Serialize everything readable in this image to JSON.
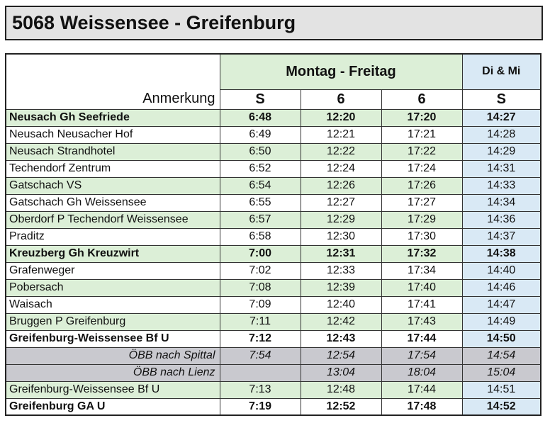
{
  "title": "5068 Weissensee - Greifenburg",
  "header": {
    "group_mf": "Montag - Freitag",
    "group_dm": "Di & Mi",
    "note_label": "Anmerkung",
    "codes": [
      "S",
      "6",
      "6",
      "S"
    ]
  },
  "rows": [
    {
      "stop": "Neusach Gh Seefriede",
      "times": [
        "6:48",
        "12:20",
        "17:20",
        "14:27"
      ],
      "style": "green",
      "bold": true
    },
    {
      "stop": "Neusach Neusacher Hof",
      "times": [
        "6:49",
        "12:21",
        "17:21",
        "14:28"
      ],
      "style": "white",
      "bold": false
    },
    {
      "stop": "Neusach Strandhotel",
      "times": [
        "6:50",
        "12:22",
        "17:22",
        "14:29"
      ],
      "style": "green",
      "bold": false
    },
    {
      "stop": "Techendorf Zentrum",
      "times": [
        "6:52",
        "12:24",
        "17:24",
        "14:31"
      ],
      "style": "white",
      "bold": false
    },
    {
      "stop": "Gatschach VS",
      "times": [
        "6:54",
        "12:26",
        "17:26",
        "14:33"
      ],
      "style": "green",
      "bold": false
    },
    {
      "stop": "Gatschach Gh Weissensee",
      "times": [
        "6:55",
        "12:27",
        "17:27",
        "14:34"
      ],
      "style": "white",
      "bold": false
    },
    {
      "stop": "Oberdorf P Techendorf Weissensee",
      "times": [
        "6:57",
        "12:29",
        "17:29",
        "14:36"
      ],
      "style": "green",
      "bold": false
    },
    {
      "stop": "Praditz",
      "times": [
        "6:58",
        "12:30",
        "17:30",
        "14:37"
      ],
      "style": "white",
      "bold": false
    },
    {
      "stop": "Kreuzberg Gh Kreuzwirt",
      "times": [
        "7:00",
        "12:31",
        "17:32",
        "14:38"
      ],
      "style": "green",
      "bold": true
    },
    {
      "stop": "Grafenweger",
      "times": [
        "7:02",
        "12:33",
        "17:34",
        "14:40"
      ],
      "style": "white",
      "bold": false
    },
    {
      "stop": "Pobersach",
      "times": [
        "7:08",
        "12:39",
        "17:40",
        "14:46"
      ],
      "style": "green",
      "bold": false
    },
    {
      "stop": "Waisach",
      "times": [
        "7:09",
        "12:40",
        "17:41",
        "14:47"
      ],
      "style": "white",
      "bold": false
    },
    {
      "stop": "Bruggen P Greifenburg",
      "times": [
        "7:11",
        "12:42",
        "17:43",
        "14:49"
      ],
      "style": "green",
      "bold": false
    },
    {
      "stop": "Greifenburg-Weissensee Bf U",
      "times": [
        "7:12",
        "12:43",
        "17:44",
        "14:50"
      ],
      "style": "white",
      "bold": true
    },
    {
      "stop": "ÖBB nach Spittal",
      "times": [
        "7:54",
        "12:54",
        "17:54",
        "14:54"
      ],
      "style": "gray",
      "bold": false
    },
    {
      "stop": "ÖBB nach Lienz",
      "times": [
        "",
        "13:04",
        "18:04",
        "15:04"
      ],
      "style": "gray",
      "bold": false
    },
    {
      "stop": "Greifenburg-Weissensee Bf U",
      "times": [
        "7:13",
        "12:48",
        "17:44",
        "14:51"
      ],
      "style": "green",
      "bold": false
    },
    {
      "stop": "Greifenburg GA U",
      "times": [
        "7:19",
        "12:52",
        "17:48",
        "14:52"
      ],
      "style": "white",
      "bold": true
    }
  ]
}
